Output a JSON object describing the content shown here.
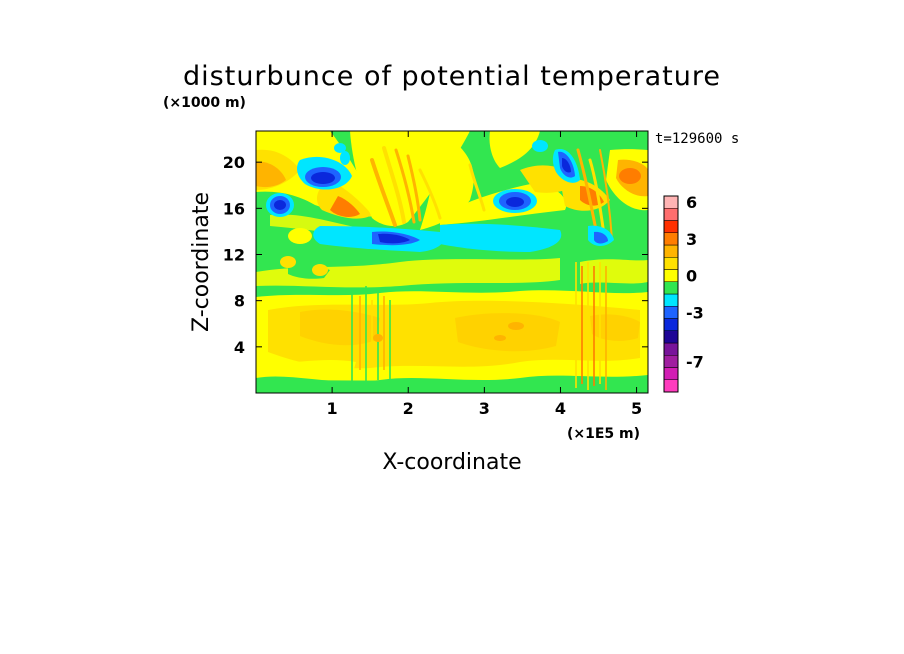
{
  "chart_data": {
    "type": "heatmap",
    "title": "disturbunce of potential temperature",
    "xlabel": "X-coordinate",
    "ylabel": "Z-coordinate",
    "x_unit": "(×1E5 m)",
    "y_unit": "(×1000 m)",
    "time_label": "t=129600 s",
    "xlim": [
      0,
      5.15
    ],
    "ylim": [
      0,
      22.7
    ],
    "x_ticks": [
      1,
      2,
      3,
      4,
      5
    ],
    "y_ticks": [
      4,
      8,
      12,
      16,
      20
    ],
    "colorbar": {
      "levels": [
        -9,
        -8,
        -7,
        -6,
        -5,
        -4,
        -3,
        -2,
        -1,
        0,
        1,
        2,
        3,
        4,
        5,
        6,
        7
      ],
      "tick_labels": [
        6,
        3,
        0,
        -3,
        -7
      ],
      "colors": [
        "#ff3cbe",
        "#d21eb4",
        "#a01ea0",
        "#78149a",
        "#1e0596",
        "#0a28dc",
        "#1e64ff",
        "#00e6ff",
        "#32e650",
        "#ffff00",
        "#ffe100",
        "#ffb400",
        "#ff7d00",
        "#ff3000",
        "#ff6e6e",
        "#ffb4b4"
      ]
    },
    "features": [
      {
        "x": 2.5,
        "z": 5.8,
        "value": 1
      },
      {
        "x": 3.35,
        "z": 5.6,
        "value": 1.5
      },
      {
        "x": 0.85,
        "z": 18.8,
        "value": -3
      },
      {
        "x": 0.33,
        "z": 16.3,
        "value": -3
      },
      {
        "x": 1.75,
        "z": 13.5,
        "value": -3
      },
      {
        "x": 3.25,
        "z": 16.5,
        "value": -3
      },
      {
        "x": 4.05,
        "z": 19.5,
        "value": -3
      },
      {
        "x": 4.5,
        "z": 13.5,
        "value": -3
      },
      {
        "x": 0.15,
        "z": 18.3,
        "value": 2
      },
      {
        "x": 1.0,
        "z": 16.0,
        "value": 2
      },
      {
        "x": 5.0,
        "z": 18.5,
        "value": 3
      }
    ]
  }
}
